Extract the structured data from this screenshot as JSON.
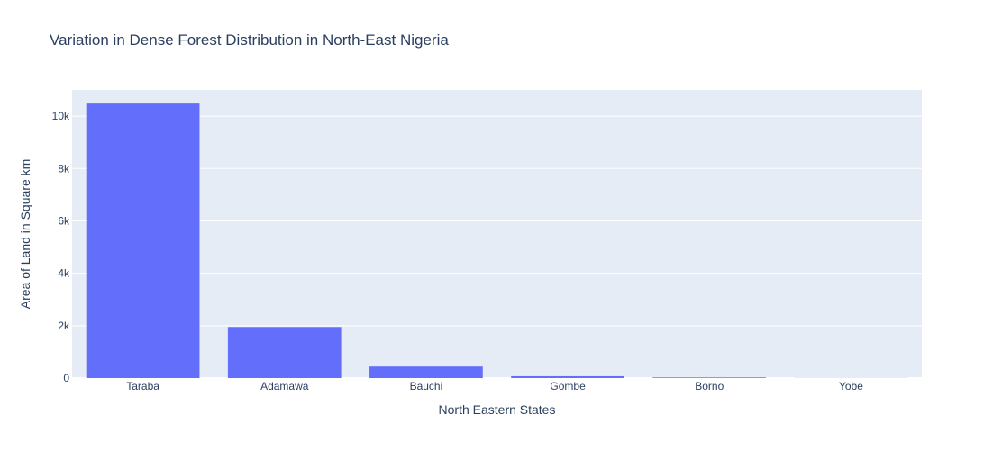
{
  "chart_data": {
    "type": "bar",
    "title": "Variation in Dense Forest Distribution in North-East Nigeria",
    "xlabel": "North Eastern States",
    "ylabel": "Area of Land in Square km",
    "categories": [
      "Taraba",
      "Adamawa",
      "Bauchi",
      "Gombe",
      "Borno",
      "Yobe"
    ],
    "values": [
      10480,
      1950,
      440,
      70,
      25,
      5
    ],
    "ylim": [
      0,
      11000
    ],
    "yticks": [
      0,
      2000,
      4000,
      6000,
      8000,
      10000
    ],
    "ytick_labels": [
      "0",
      "2k",
      "4k",
      "6k",
      "8k",
      "10k"
    ],
    "grid": true,
    "bar_color": "#636efa",
    "plot_bg_color": "#e5ecf6"
  }
}
